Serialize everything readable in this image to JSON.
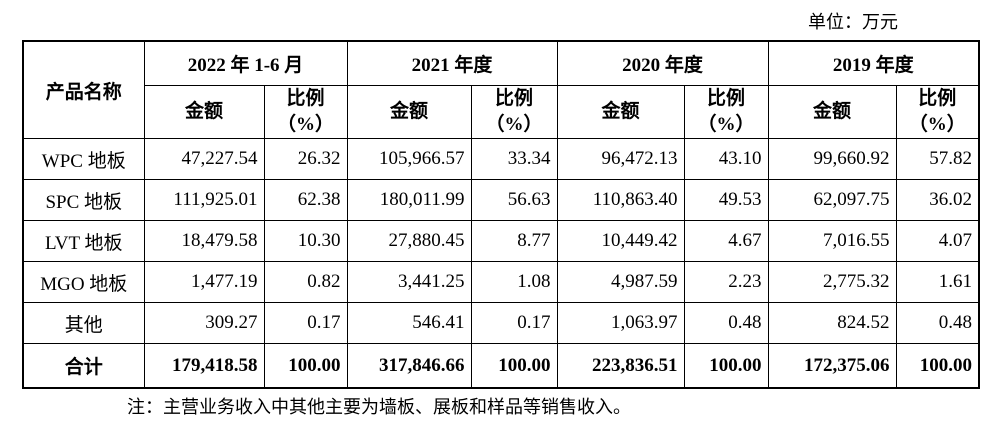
{
  "unit": "单位：万元",
  "table": {
    "header": {
      "product": "产品名称",
      "periods": [
        "2022 年 1-6 月",
        "2021 年度",
        "2020 年度",
        "2019 年度"
      ],
      "amount": "金额",
      "ratio": "比例",
      "ratio_unit": "（%）"
    },
    "rows": [
      [
        "WPC 地板",
        "47,227.54",
        "26.32",
        "105,966.57",
        "33.34",
        "96,472.13",
        "43.10",
        "99,660.92",
        "57.82"
      ],
      [
        "SPC 地板",
        "111,925.01",
        "62.38",
        "180,011.99",
        "56.63",
        "110,863.40",
        "49.53",
        "62,097.75",
        "36.02"
      ],
      [
        "LVT 地板",
        "18,479.58",
        "10.30",
        "27,880.45",
        "8.77",
        "10,449.42",
        "4.67",
        "7,016.55",
        "4.07"
      ],
      [
        "MGO 地板",
        "1,477.19",
        "0.82",
        "3,441.25",
        "1.08",
        "4,987.59",
        "2.23",
        "2,775.32",
        "1.61"
      ],
      [
        "其他",
        "309.27",
        "0.17",
        "546.41",
        "0.17",
        "1,063.97",
        "0.48",
        "824.52",
        "0.48"
      ]
    ],
    "total": [
      "合计",
      "179,418.58",
      "100.00",
      "317,846.66",
      "100.00",
      "223,836.51",
      "100.00",
      "172,375.06",
      "100.00"
    ]
  },
  "note": "注：主营业务收入中其他主要为墙板、展板和样品等销售收入。"
}
